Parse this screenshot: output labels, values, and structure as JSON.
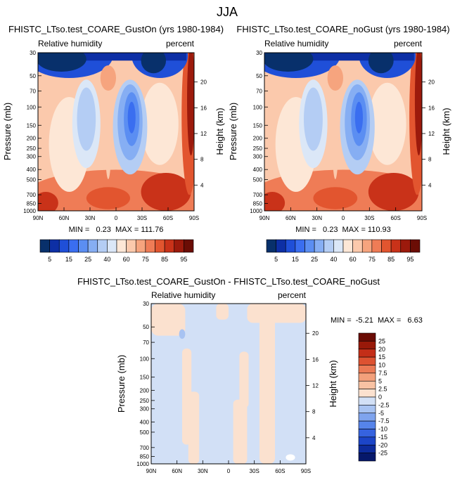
{
  "figure_title": "JJA",
  "colors": {
    "rh_levels": [
      "#08306b",
      "#0d2fa5",
      "#1f4fd8",
      "#3a6ef0",
      "#5b8ef2",
      "#86aef3",
      "#b4cdf4",
      "#dbe7f7",
      "#fde7d6",
      "#fbc9ac",
      "#f6a47e",
      "#ef7c56",
      "#e2552f",
      "#c93219",
      "#9c1a0c",
      "#6b0d05"
    ],
    "diff_levels": [
      "#06186a",
      "#0d2b9c",
      "#1c45c8",
      "#3663df",
      "#5684ea",
      "#7fa4ee",
      "#a8c3f2",
      "#d2e0f6",
      "#fbe1cf",
      "#f8c2a3",
      "#f3a07b",
      "#eb7a55",
      "#dd5231",
      "#c42e18",
      "#981909",
      "#6a0b04"
    ]
  },
  "chart_data": [
    {
      "type": "heatmap",
      "title": "FHISTC_LTso.test_COARE_GustOn (yrs 1980-1984)",
      "left_label": "Relative humidity",
      "right_label": "percent",
      "ylabel": "Pressure (mb)",
      "ylabel_right": "Height (km)",
      "x_ticks": [
        "90N",
        "60N",
        "30N",
        "0",
        "30S",
        "60S",
        "90S"
      ],
      "y_ticks": [
        "30",
        "50",
        "70",
        "100",
        "150",
        "200",
        "250",
        "300",
        "400",
        "500",
        "700",
        "850",
        "1000"
      ],
      "y_ticks_right": [
        "20",
        "16",
        "12",
        "8",
        "4"
      ],
      "stats": "MIN =   0.23  MAX = 111.76",
      "colorbar_labels": [
        "5",
        "15",
        "25",
        "40",
        "60",
        "75",
        "85",
        "95"
      ]
    },
    {
      "type": "heatmap",
      "title": "FHISTC_LTso.test_COARE_noGust (yrs 1980-1984)",
      "left_label": "Relative humidity",
      "right_label": "percent",
      "ylabel": "Pressure (mb)",
      "ylabel_right": "Height (km)",
      "x_ticks": [
        "90N",
        "60N",
        "30N",
        "0",
        "30S",
        "60S",
        "90S"
      ],
      "y_ticks": [
        "30",
        "50",
        "70",
        "100",
        "150",
        "200",
        "250",
        "300",
        "400",
        "500",
        "700",
        "850",
        "1000"
      ],
      "y_ticks_right": [
        "20",
        "16",
        "12",
        "8",
        "4"
      ],
      "stats": "MIN =   0.23  MAX = 110.93",
      "colorbar_labels": [
        "5",
        "15",
        "25",
        "40",
        "60",
        "75",
        "85",
        "95"
      ]
    },
    {
      "type": "heatmap",
      "title": "FHISTC_LTso.test_COARE_GustOn - FHISTC_LTso.test_COARE_noGust",
      "left_label": "Relative humidity",
      "right_label": "percent",
      "ylabel": "Pressure (mb)",
      "ylabel_right": "Height (km)",
      "x_ticks": [
        "90N",
        "60N",
        "30N",
        "0",
        "30S",
        "60S",
        "90S"
      ],
      "y_ticks": [
        "30",
        "50",
        "70",
        "100",
        "150",
        "200",
        "250",
        "300",
        "400",
        "500",
        "700",
        "850",
        "1000"
      ],
      "y_ticks_right": [
        "20",
        "16",
        "12",
        "8",
        "4"
      ],
      "stats": "MIN =  -5.21  MAX =   6.63",
      "colorbar_labels": [
        "25",
        "20",
        "15",
        "10",
        "7.5",
        "5",
        "2.5",
        "0",
        "-2.5",
        "-5",
        "-7.5",
        "-10",
        "-15",
        "-20",
        "-25"
      ]
    }
  ]
}
